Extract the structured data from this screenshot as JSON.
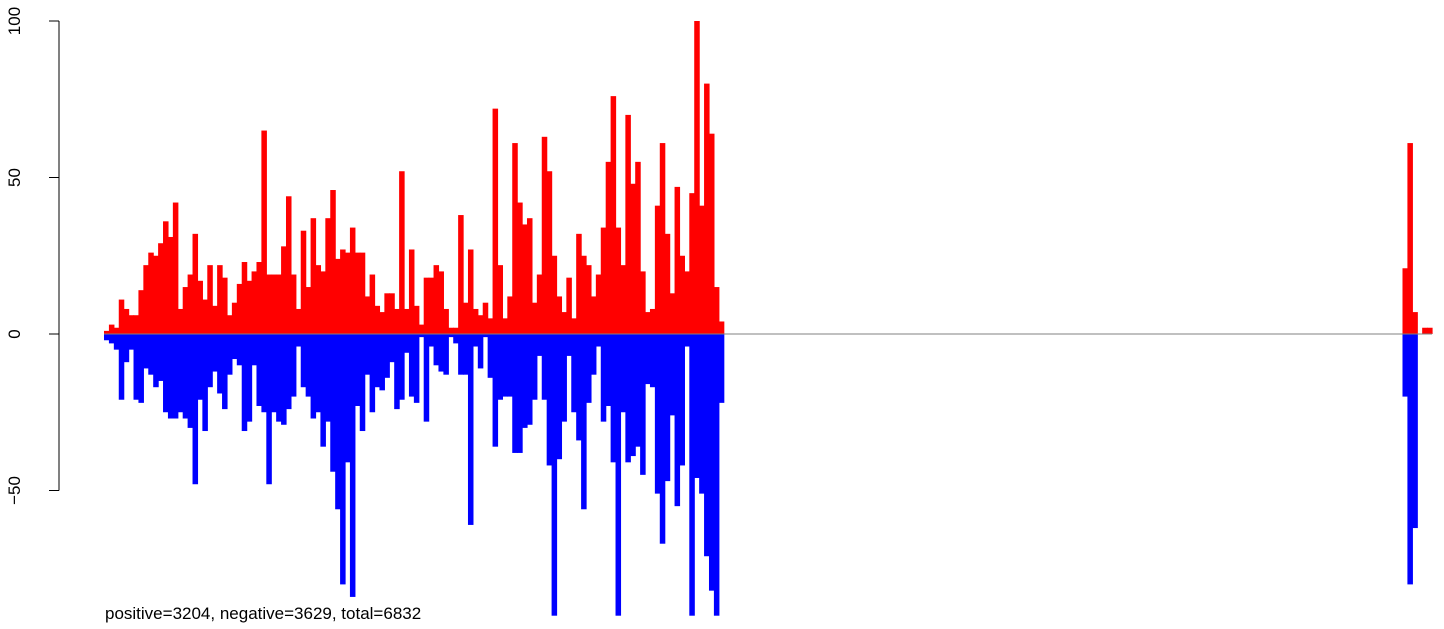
{
  "chart_data": {
    "type": "bar",
    "title": "",
    "xlabel": "",
    "ylabel": "",
    "ylim": [
      -91,
      100
    ],
    "yticks": [
      {
        "value": -50,
        "label": "−50"
      },
      {
        "value": 0,
        "label": "0"
      },
      {
        "value": 50,
        "label": "50"
      },
      {
        "value": 100,
        "label": "100"
      }
    ],
    "grid": false,
    "legend": "none",
    "colors": {
      "positive": "#ff0000",
      "negative": "#0000ff",
      "baseline": "#808080",
      "axis": "#000000"
    },
    "x_count": 270,
    "series": [
      {
        "sign": "positive",
        "x_start": 0,
        "values": [
          1,
          3,
          2,
          11,
          8,
          6,
          6,
          14,
          22,
          26,
          25,
          29,
          36,
          31,
          42,
          8,
          15,
          19,
          32,
          17,
          11,
          22,
          9,
          22,
          18,
          6,
          10,
          16,
          23,
          17,
          20,
          23,
          65,
          19,
          19,
          19,
          28,
          44,
          19,
          8,
          33,
          15,
          37,
          22,
          20,
          37,
          46,
          24,
          27,
          26,
          34,
          26,
          26,
          12,
          19,
          9,
          7,
          13,
          13,
          8,
          52,
          8,
          27,
          9,
          3,
          18,
          18,
          22,
          20,
          8,
          2,
          2,
          38,
          10,
          27,
          8,
          6,
          10,
          5,
          72,
          22,
          5,
          12,
          61,
          42,
          35,
          37,
          10,
          19,
          63,
          52,
          25,
          12,
          7,
          18,
          5,
          32,
          25,
          22,
          12,
          19,
          34,
          55,
          76,
          34,
          22,
          70,
          48,
          55,
          20,
          7,
          8,
          41,
          61,
          32,
          13,
          47,
          25,
          20,
          45,
          100,
          41,
          80,
          64,
          15,
          4
        ],
        "tail": [
          {
            "x": 264,
            "values": [
              21,
              61,
              7
            ]
          },
          {
            "x": 268,
            "values": [
              2,
              2
            ]
          }
        ]
      },
      {
        "sign": "negative",
        "x_start": 0,
        "values": [
          -2,
          -3,
          -5,
          -21,
          -9,
          -5,
          -21,
          -22,
          -11,
          -13,
          -17,
          -15,
          -25,
          -27,
          -27,
          -25,
          -27,
          -30,
          -48,
          -21,
          -31,
          -17,
          -12,
          -19,
          -24,
          -13,
          -8,
          -10,
          -31,
          -28,
          -10,
          -23,
          -25,
          -48,
          -25,
          -28,
          -29,
          -24,
          -20,
          -4,
          -17,
          -20,
          -27,
          -25,
          -36,
          -28,
          -44,
          -56,
          -80,
          -41,
          -84,
          -23,
          -31,
          -13,
          -25,
          -17,
          -18,
          -14,
          -9,
          -24,
          -21,
          -6,
          -20,
          -22,
          -1,
          -28,
          -4,
          -10,
          -12,
          -13,
          -1,
          -3,
          -13,
          -13,
          -61,
          -4,
          -11,
          -1,
          -14,
          -36,
          -21,
          -20,
          -20,
          -38,
          -38,
          -30,
          -29,
          -21,
          -7,
          -21,
          -42,
          -90,
          -40,
          -28,
          -7,
          -25,
          -34,
          -56,
          -22,
          -13,
          -4,
          -28,
          -23,
          -41,
          -90,
          -25,
          -41,
          -39,
          -36,
          -45,
          -16,
          -17,
          -51,
          -67,
          -47,
          -26,
          -55,
          -42,
          -4,
          -90,
          -46,
          -51,
          -71,
          -82,
          -90,
          -22
        ],
        "tail": [
          {
            "x": 264,
            "values": [
              -20,
              -80,
              -62
            ]
          }
        ]
      }
    ]
  },
  "footer": {
    "text": "positive=3204, negative=3629, total=6832"
  }
}
